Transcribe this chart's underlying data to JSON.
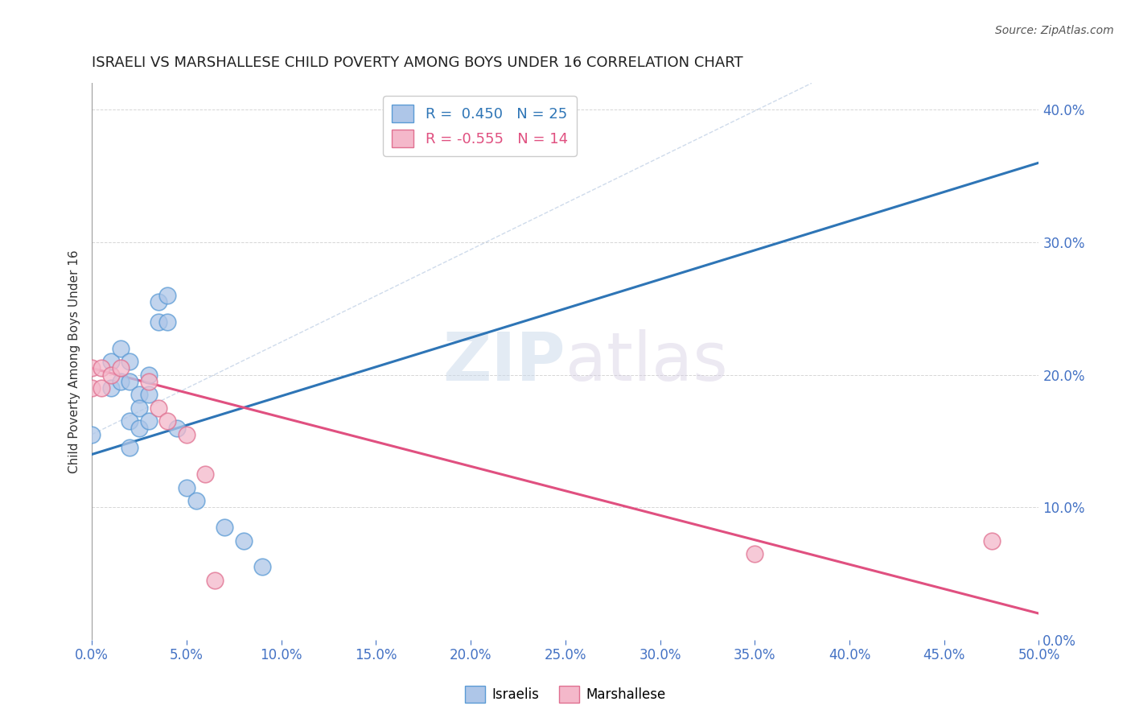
{
  "title": "ISRAELI VS MARSHALLESE CHILD POVERTY AMONG BOYS UNDER 16 CORRELATION CHART",
  "source": "Source: ZipAtlas.com",
  "ylabel": "Child Poverty Among Boys Under 16",
  "xlim": [
    0.0,
    0.5
  ],
  "ylim": [
    0.0,
    0.42
  ],
  "xticks": [
    0.0,
    0.05,
    0.1,
    0.15,
    0.2,
    0.25,
    0.3,
    0.35,
    0.4,
    0.45,
    0.5
  ],
  "yticks": [
    0.0,
    0.1,
    0.2,
    0.3,
    0.4
  ],
  "israeli_R": 0.45,
  "israeli_N": 25,
  "marshallese_R": -0.555,
  "marshallese_N": 14,
  "israeli_color": "#aec6e8",
  "israeli_edge": "#5b9bd5",
  "marshallese_color": "#f4b8ca",
  "marshallese_edge": "#e07090",
  "israeli_x": [
    0.0,
    0.01,
    0.01,
    0.015,
    0.015,
    0.02,
    0.02,
    0.02,
    0.02,
    0.025,
    0.025,
    0.025,
    0.03,
    0.03,
    0.03,
    0.035,
    0.035,
    0.04,
    0.04,
    0.045,
    0.05,
    0.055,
    0.07,
    0.08,
    0.09
  ],
  "israeli_y": [
    0.155,
    0.21,
    0.19,
    0.22,
    0.195,
    0.21,
    0.195,
    0.165,
    0.145,
    0.185,
    0.175,
    0.16,
    0.2,
    0.185,
    0.165,
    0.255,
    0.24,
    0.26,
    0.24,
    0.16,
    0.115,
    0.105,
    0.085,
    0.075,
    0.055
  ],
  "marshallese_x": [
    0.0,
    0.0,
    0.005,
    0.005,
    0.01,
    0.015,
    0.03,
    0.035,
    0.04,
    0.05,
    0.06,
    0.065,
    0.35,
    0.475
  ],
  "marshallese_y": [
    0.205,
    0.19,
    0.205,
    0.19,
    0.2,
    0.205,
    0.195,
    0.175,
    0.165,
    0.155,
    0.125,
    0.045,
    0.065,
    0.075
  ],
  "israeli_line_x": [
    0.0,
    0.5
  ],
  "israeli_line_y": [
    0.14,
    0.36
  ],
  "marshallese_line_x": [
    0.0,
    0.5
  ],
  "marshallese_line_y": [
    0.205,
    0.02
  ],
  "dashed_line_x": [
    0.0,
    0.38
  ],
  "dashed_line_y": [
    0.155,
    0.42
  ],
  "watermark_zip": "ZIP",
  "watermark_atlas": "atlas",
  "background_color": "#ffffff",
  "grid_color": "#cccccc"
}
